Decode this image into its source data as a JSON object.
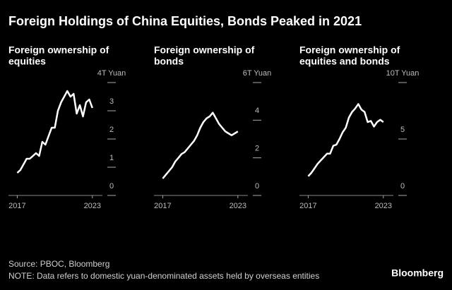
{
  "title": "Foreign Holdings of China Equities, Bonds Peaked in 2021",
  "source": "Source: PBOC, Bloomberg",
  "note": "NOTE: Data refers to domestic yuan-denominated assets held by overseas entities",
  "brand": "Bloomberg",
  "chart_data": [
    {
      "type": "line",
      "title": [
        "Foreign ownership of",
        "equities"
      ],
      "color": "#ffffff",
      "x": [
        2017,
        2017.25,
        2017.5,
        2017.75,
        2018,
        2018.25,
        2018.5,
        2018.75,
        2019,
        2019.25,
        2019.5,
        2019.75,
        2020,
        2020.25,
        2020.5,
        2020.75,
        2021,
        2021.25,
        2021.5,
        2021.75,
        2022,
        2022.25,
        2022.5,
        2022.75,
        2023
      ],
      "values": [
        0.8,
        0.9,
        1.1,
        1.3,
        1.3,
        1.4,
        1.5,
        1.4,
        1.9,
        1.8,
        2.1,
        2.4,
        2.4,
        3.0,
        3.3,
        3.5,
        3.7,
        3.5,
        3.6,
        2.9,
        3.2,
        2.8,
        3.3,
        3.4,
        3.1
      ],
      "xlim": [
        2016.3,
        2023.8
      ],
      "xticks": [
        2017,
        2023
      ],
      "ylim": [
        0,
        4
      ],
      "yticks": [
        0,
        1,
        2,
        3,
        {
          "value": 4,
          "label": "4T Yuan"
        }
      ]
    },
    {
      "type": "line",
      "title": [
        "Foreign ownership of",
        "bonds"
      ],
      "color": "#ffffff",
      "x": [
        2017,
        2017.25,
        2017.5,
        2017.75,
        2018,
        2018.25,
        2018.5,
        2018.75,
        2019,
        2019.25,
        2019.5,
        2019.75,
        2020,
        2020.25,
        2020.5,
        2020.75,
        2021,
        2021.25,
        2021.5,
        2021.75,
        2022,
        2022.25,
        2022.5,
        2022.75,
        2023
      ],
      "values": [
        0.9,
        1.1,
        1.3,
        1.5,
        1.8,
        2.0,
        2.2,
        2.3,
        2.5,
        2.7,
        2.9,
        3.2,
        3.6,
        3.9,
        4.1,
        4.2,
        4.4,
        4.1,
        3.8,
        3.6,
        3.4,
        3.3,
        3.2,
        3.3,
        3.4
      ],
      "xlim": [
        2016.3,
        2023.8
      ],
      "xticks": [
        2017,
        2023
      ],
      "ylim": [
        0,
        6
      ],
      "yticks": [
        0,
        2,
        4,
        {
          "value": 6,
          "label": "6T Yuan"
        }
      ]
    },
    {
      "type": "line",
      "title": [
        "Foreign ownership of",
        "equities and bonds"
      ],
      "color": "#ffffff",
      "x": [
        2017,
        2017.25,
        2017.5,
        2017.75,
        2018,
        2018.25,
        2018.5,
        2018.75,
        2019,
        2019.25,
        2019.5,
        2019.75,
        2020,
        2020.25,
        2020.5,
        2020.75,
        2021,
        2021.25,
        2021.5,
        2021.75,
        2022,
        2022.25,
        2022.5,
        2022.75,
        2023
      ],
      "values": [
        1.7,
        2.0,
        2.4,
        2.8,
        3.1,
        3.4,
        3.7,
        3.7,
        4.4,
        4.5,
        5.0,
        5.6,
        6.0,
        6.9,
        7.4,
        7.7,
        8.1,
        7.6,
        7.4,
        6.5,
        6.6,
        6.1,
        6.5,
        6.7,
        6.5
      ],
      "xlim": [
        2016.3,
        2023.8
      ],
      "xticks": [
        2017,
        2023
      ],
      "ylim": [
        0,
        10
      ],
      "yticks": [
        0,
        5,
        {
          "value": 10,
          "label": "10T Yuan"
        }
      ]
    }
  ]
}
